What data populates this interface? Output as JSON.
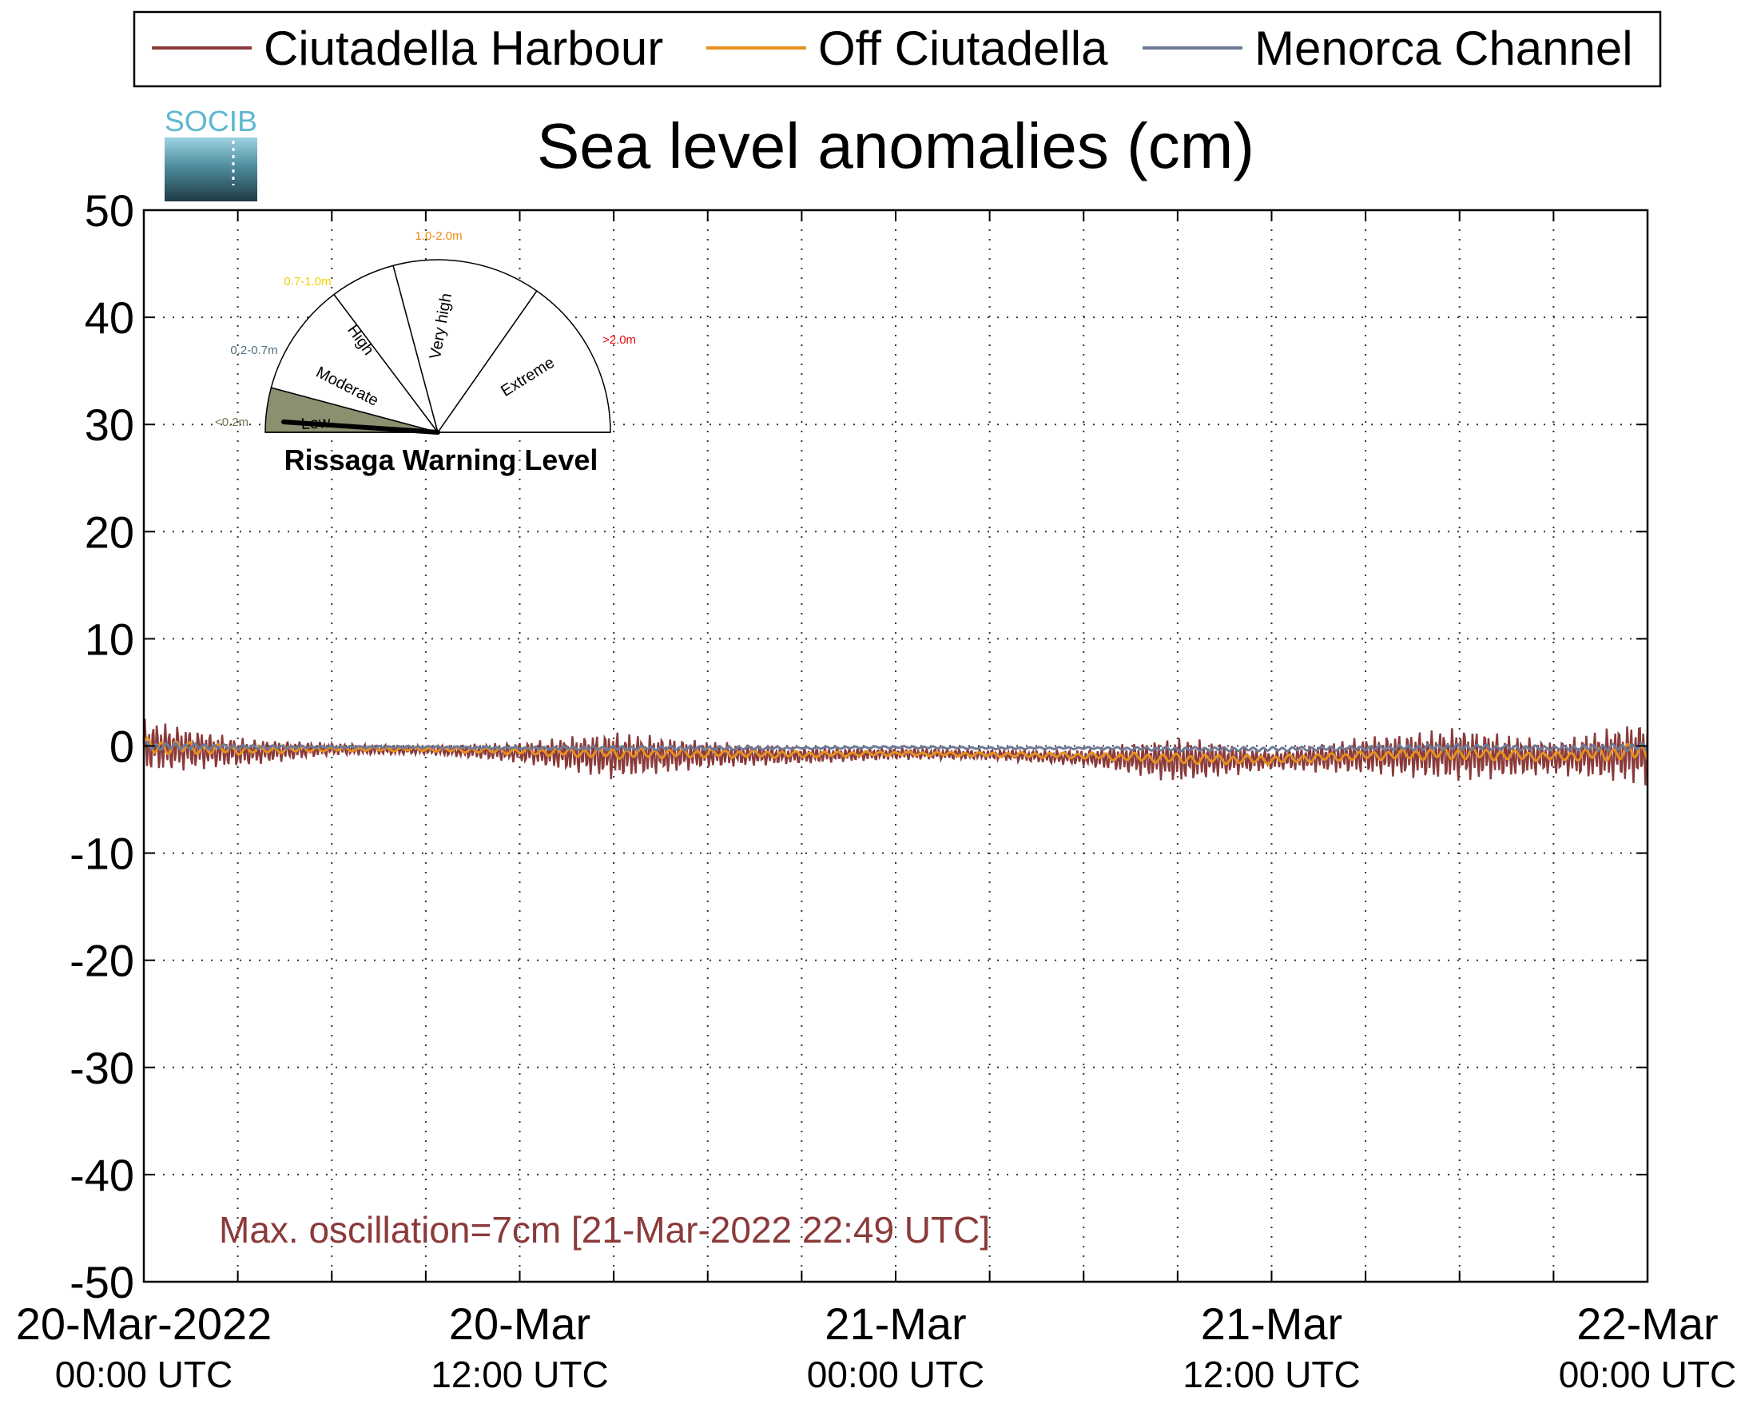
{
  "logo_text": "SOCIB",
  "legend": {
    "items": [
      {
        "label": "Ciutadella Harbour",
        "color": "#8B3A3A"
      },
      {
        "label": "Off Ciutadella",
        "color": "#E69020"
      },
      {
        "label": "Menorca Channel",
        "color": "#6E7B98"
      }
    ]
  },
  "gauge": {
    "title": "Rissaga Warning Level",
    "current_level": "Low",
    "sectors": [
      {
        "name": "Low",
        "range": "<0.2m",
        "range_color": "#6B7A4E",
        "fill": "#8A9070"
      },
      {
        "name": "Moderate",
        "range": "0.2-0.7m",
        "range_color": "#4E7080",
        "fill": "#ffffff"
      },
      {
        "name": "High",
        "range": "0.7-1.0m",
        "range_color": "#F2D000",
        "fill": "#ffffff"
      },
      {
        "name": "Very high",
        "range": "1.0-2.0m",
        "range_color": "#F08A10",
        "fill": "#ffffff"
      },
      {
        "name": "Extreme",
        "range": ">2.0m",
        "range_color": "#E01010",
        "fill": "#ffffff"
      }
    ]
  },
  "annotation": {
    "text": "Max. oscillation=7cm [21-Mar-2022 22:49 UTC]",
    "color": "#8B3A3A"
  },
  "chart_data": {
    "type": "line",
    "title": "Sea level anomalies (cm)",
    "xlabel": "",
    "ylabel": "",
    "ylim": [
      -50,
      50
    ],
    "yticks": [
      50,
      40,
      30,
      20,
      10,
      0,
      -10,
      -20,
      -30,
      -40,
      -50
    ],
    "xlim": [
      "2022-03-20 00:00",
      "2022-03-22 00:00"
    ],
    "xticks": [
      {
        "line1": "20-Mar-2022",
        "line2": "00:00 UTC"
      },
      {
        "line1": "20-Mar",
        "line2": "12:00 UTC"
      },
      {
        "line1": "21-Mar",
        "line2": "00:00 UTC"
      },
      {
        "line1": "21-Mar",
        "line2": "12:00 UTC"
      },
      {
        "line1": "22-Mar",
        "line2": "00:00 UTC"
      }
    ],
    "grid": true,
    "legend_position": "top",
    "x_hours": [
      0,
      3,
      6,
      9,
      12,
      15,
      18,
      21,
      24,
      27,
      30,
      33,
      36,
      39,
      42,
      45,
      48
    ],
    "series": [
      {
        "name": "Ciutadella Harbour",
        "color": "#8B3A3A",
        "mean": [
          0.0,
          -0.6,
          -0.3,
          -0.4,
          -0.6,
          -0.9,
          -0.8,
          -0.9,
          -0.7,
          -0.8,
          -1.1,
          -1.3,
          -1.3,
          -0.9,
          -0.8,
          -1.1,
          -0.6
        ],
        "amplitude": [
          2.6,
          1.4,
          0.6,
          0.4,
          1.0,
          2.3,
          1.3,
          0.8,
          0.6,
          0.5,
          0.8,
          2.2,
          1.0,
          1.8,
          2.6,
          1.6,
          3.2
        ]
      },
      {
        "name": "Off Ciutadella",
        "color": "#E69020",
        "mean": [
          0.0,
          -0.4,
          -0.3,
          -0.3,
          -0.5,
          -0.7,
          -0.7,
          -0.8,
          -0.7,
          -0.8,
          -0.9,
          -1.2,
          -1.3,
          -0.9,
          -0.7,
          -1.0,
          -0.5
        ],
        "amplitude": [
          0.8,
          0.4,
          0.2,
          0.2,
          0.3,
          0.5,
          0.4,
          0.3,
          0.2,
          0.2,
          0.3,
          0.5,
          0.4,
          0.4,
          0.6,
          0.4,
          0.9
        ]
      },
      {
        "name": "Menorca Channel",
        "color": "#6E7B98",
        "mean": [
          0.0,
          -0.1,
          -0.1,
          -0.1,
          -0.2,
          -0.2,
          -0.2,
          -0.2,
          -0.1,
          -0.2,
          -0.2,
          -0.3,
          -0.3,
          -0.2,
          -0.1,
          -0.2,
          -0.1
        ],
        "amplitude": [
          0.4,
          0.2,
          0.1,
          0.1,
          0.1,
          0.2,
          0.2,
          0.1,
          0.1,
          0.1,
          0.1,
          0.2,
          0.2,
          0.2,
          0.3,
          0.2,
          0.4
        ]
      }
    ]
  }
}
